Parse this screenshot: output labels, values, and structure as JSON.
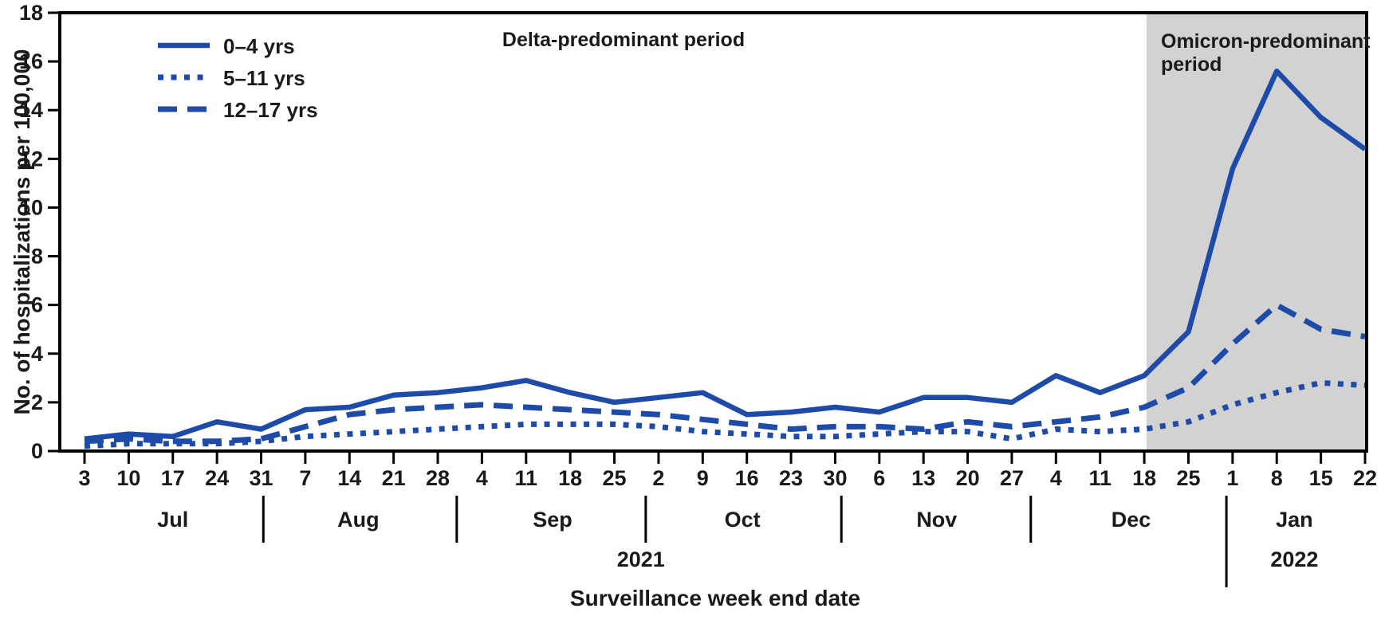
{
  "figure": {
    "annotations": {
      "delta_period": "Delta-predominant period",
      "omicron_period": "Omicron-predominant period",
      "omicron_period_display": "Omicron-predominant\nperiod"
    }
  },
  "chart_data": {
    "type": "line",
    "title": "",
    "xlabel": "Surveillance week end date",
    "ylabel": "No. of hospitalizations per 100,000",
    "ylim": [
      0,
      18
    ],
    "ytick_interval": 2,
    "grid": false,
    "legend_position": "top-left",
    "categories": [
      "Jul 3",
      "Jul 10",
      "Jul 17",
      "Jul 24",
      "Jul 31",
      "Aug 7",
      "Aug 14",
      "Aug 21",
      "Aug 28",
      "Sep 4",
      "Sep 11",
      "Sep 18",
      "Sep 25",
      "Oct 2",
      "Oct 9",
      "Oct 16",
      "Oct 23",
      "Oct 30",
      "Nov 6",
      "Nov 13",
      "Nov 20",
      "Nov 27",
      "Dec 4",
      "Dec 11",
      "Dec 18",
      "Dec 25",
      "Jan 1",
      "Jan 8",
      "Jan 15",
      "Jan 22"
    ],
    "x_day_labels": [
      "3",
      "10",
      "17",
      "24",
      "31",
      "7",
      "14",
      "21",
      "28",
      "4",
      "11",
      "18",
      "25",
      "2",
      "9",
      "16",
      "23",
      "30",
      "6",
      "13",
      "20",
      "27",
      "4",
      "11",
      "18",
      "25",
      "1",
      "8",
      "15",
      "22"
    ],
    "months": [
      {
        "label": "Jul",
        "anchor_index": 2.0
      },
      {
        "label": "Aug",
        "anchor_index": 6.2
      },
      {
        "label": "Sep",
        "anchor_index": 10.6
      },
      {
        "label": "Oct",
        "anchor_index": 14.9
      },
      {
        "label": "Nov",
        "anchor_index": 19.3
      },
      {
        "label": "Dec",
        "anchor_index": 23.7
      },
      {
        "label": "Jan",
        "anchor_index": 27.4
      }
    ],
    "month_separators": [
      {
        "index": 4.05,
        "year_break": false
      },
      {
        "index": 8.43,
        "year_break": false
      },
      {
        "index": 12.71,
        "year_break": false
      },
      {
        "index": 17.14,
        "year_break": false
      },
      {
        "index": 21.43,
        "year_break": false
      },
      {
        "index": 25.86,
        "year_break": true
      }
    ],
    "year_labels": [
      {
        "label": "2021",
        "anchor_index": 12.6
      },
      {
        "label": "2022",
        "anchor_index": 27.4
      }
    ],
    "shade": {
      "label": "Omicron-predominant period",
      "start_index": 24.05,
      "end_index": 29,
      "color": "#d2d2d2"
    },
    "series": [
      {
        "name": "0–4 yrs",
        "style": "solid",
        "values": [
          0.5,
          0.7,
          0.6,
          1.2,
          0.9,
          1.7,
          1.8,
          2.3,
          2.4,
          2.6,
          2.9,
          2.4,
          2.0,
          2.2,
          2.4,
          1.5,
          1.6,
          1.8,
          1.6,
          2.2,
          2.2,
          2.0,
          3.1,
          2.4,
          3.1,
          4.9,
          11.6,
          15.6,
          13.7,
          12.4
        ]
      },
      {
        "name": "5–11 yrs",
        "style": "dotted",
        "values": [
          0.2,
          0.3,
          0.3,
          0.3,
          0.4,
          0.6,
          0.7,
          0.8,
          0.9,
          1.0,
          1.1,
          1.1,
          1.1,
          1.0,
          0.8,
          0.7,
          0.6,
          0.6,
          0.7,
          0.8,
          0.8,
          0.5,
          0.9,
          0.8,
          0.9,
          1.2,
          1.9,
          2.4,
          2.8,
          2.7
        ]
      },
      {
        "name": "12–17 yrs",
        "style": "dashed",
        "values": [
          0.4,
          0.5,
          0.4,
          0.4,
          0.5,
          1.0,
          1.5,
          1.7,
          1.8,
          1.9,
          1.8,
          1.7,
          1.6,
          1.5,
          1.3,
          1.1,
          0.9,
          1.0,
          1.0,
          0.9,
          1.2,
          1.0,
          1.2,
          1.4,
          1.8,
          2.6,
          4.4,
          6.0,
          5.0,
          4.7
        ]
      }
    ],
    "colors": {
      "line": "#1e4ba8",
      "shade": "#d2d2d2",
      "axis": "#000000",
      "text": "#1a1a1a",
      "background": "#ffffff"
    }
  }
}
